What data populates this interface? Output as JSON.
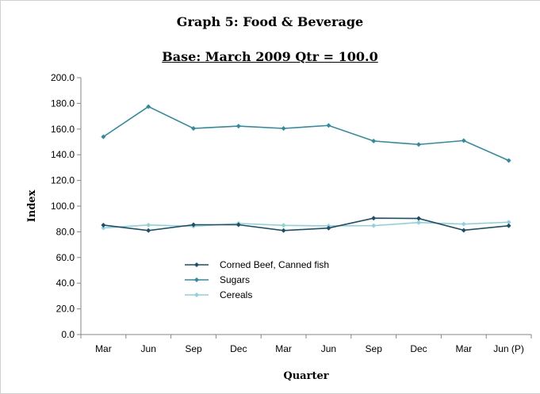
{
  "chart_data": {
    "type": "line",
    "title": "Graph 5: Food & Beverage",
    "subtitle": "Base: March 2009 Qtr  = 100.0",
    "xlabel": "Quarter",
    "ylabel": "Index",
    "ylim": [
      0,
      200
    ],
    "yticks": [
      "0.0",
      "20.0",
      "40.0",
      "60.0",
      "80.0",
      "100.0",
      "120.0",
      "140.0",
      "160.0",
      "180.0",
      "200.0"
    ],
    "categories": [
      "Mar",
      "Jun",
      "Sep",
      "Dec",
      "Mar",
      "Jun",
      "Sep",
      "Dec",
      "Mar",
      "Jun (P)"
    ],
    "grid": false,
    "legend_position": "center-left",
    "series": [
      {
        "name": "Corned Beef, Canned fish",
        "color": "#1d4f66",
        "marker": "diamond",
        "values": [
          85.2,
          81.0,
          85.5,
          85.5,
          81.0,
          82.9,
          90.6,
          90.4,
          81.2,
          84.7
        ]
      },
      {
        "name": "Sugars",
        "color": "#2e8ba0",
        "marker": "diamond",
        "values": [
          154.0,
          177.5,
          160.5,
          162.3,
          160.5,
          162.8,
          150.7,
          148.0,
          151.0,
          135.5
        ]
      },
      {
        "name": "Cereals",
        "color": "#8fd0dd",
        "marker": "diamond",
        "values": [
          83.0,
          85.3,
          84.3,
          86.5,
          85.0,
          84.6,
          84.8,
          87.2,
          86.0,
          87.5
        ]
      }
    ]
  }
}
